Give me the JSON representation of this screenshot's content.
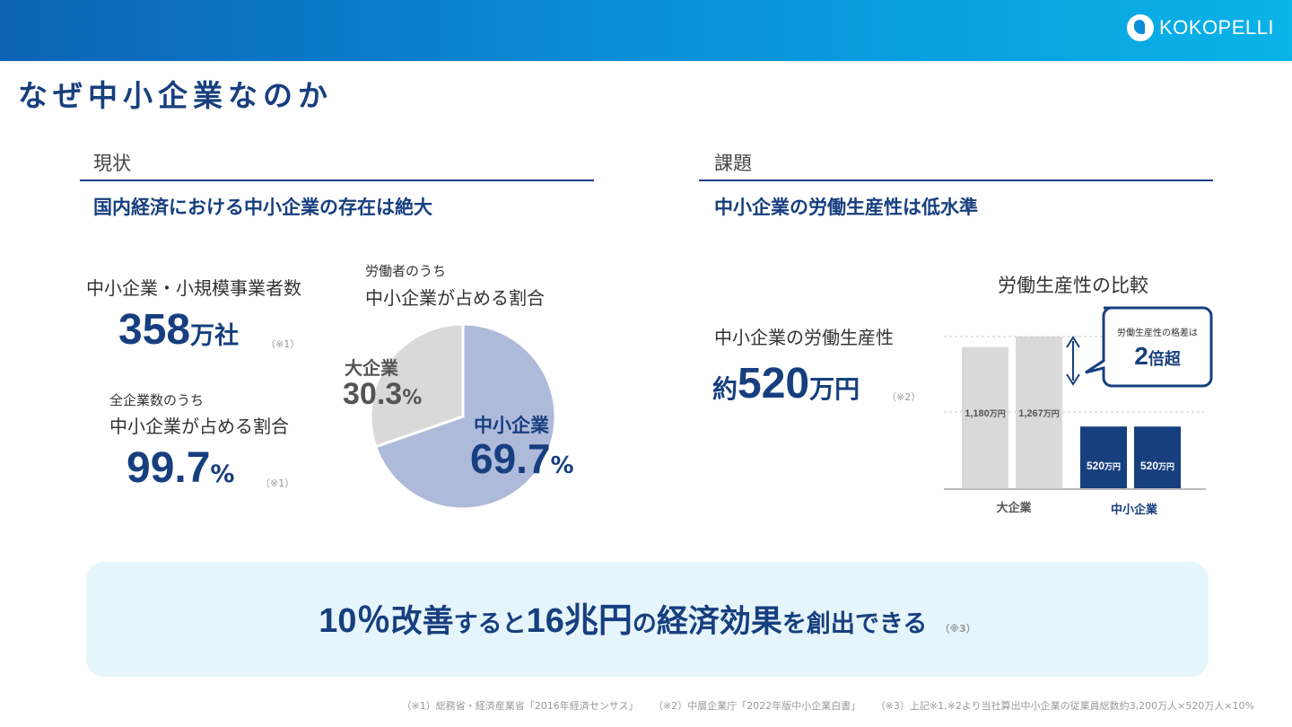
{
  "header": {
    "logo_text": "KOKOPELLI",
    "logo_icon": "kokopelli-logo-icon"
  },
  "page": {
    "title": "なぜ中小企業なのか"
  },
  "left": {
    "label": "現状",
    "heading": "国内経済における中小企業の存在は絶大",
    "count_label": "中小企業・小規模事業者数",
    "count_value": "358",
    "count_unit": "万社",
    "count_note": "（※1）",
    "ratio_small": "全企業数のうち",
    "ratio_label": "中小企業が占める割合",
    "ratio_value": "99.7",
    "ratio_unit": "%",
    "ratio_note": "（※1）"
  },
  "pie": {
    "caption_small": "労働者のうち",
    "caption": "中小企業が占める割合",
    "large_name": "大企業",
    "large_value": "30.3",
    "small_name": "中小企業",
    "small_value": "69.7",
    "unit": "%"
  },
  "right": {
    "label": "課題",
    "heading": "中小企業の労働生産性は低水準",
    "prod_label": "中小企業の労働生産性",
    "prod_prefix": "約",
    "prod_value": "520",
    "prod_unit": "万円",
    "prod_note": "（※2）",
    "chart_title": "労働生産性の比較",
    "callout_small": "労働生産性の格差は",
    "callout_num": "2",
    "callout_unit": "倍超"
  },
  "chart_data": {
    "type": "bar",
    "title": "労働生産性の比較",
    "categories": [
      "大企業",
      "中小企業"
    ],
    "bars": [
      {
        "group": "大企業",
        "value": 1180,
        "label_num": "1,180",
        "label_unit": "万円"
      },
      {
        "group": "大企業",
        "value": 1267,
        "label_num": "1,267",
        "label_unit": "万円"
      },
      {
        "group": "中小企業",
        "value": 520,
        "label_num": "520",
        "label_unit": "万円"
      },
      {
        "group": "中小企業",
        "value": 520,
        "label_num": "520",
        "label_unit": "万円"
      }
    ],
    "colors": {
      "large": "#d9d9d9",
      "small": "#173f7f"
    }
  },
  "pie_data": {
    "type": "pie",
    "slices": [
      {
        "name": "中小企業",
        "value": 69.7,
        "color": "#aebad9"
      },
      {
        "name": "大企業",
        "value": 30.3,
        "color": "#d9d9d9"
      }
    ]
  },
  "bottom": {
    "p1": "10％",
    "p2": "改善",
    "p3": "すると",
    "p4": "16兆円",
    "p5": "の",
    "p6": "経済効果",
    "p7": "を創出できる",
    "note": "（※3）"
  },
  "footnotes": [
    "（※1）総務省・経済産業省「2016年経済センサス」",
    "（※2）中層企業庁「2022年版中小企業白書」",
    "（※3）上記※1,※2より当社算出中小企業の従業員総数約3,200万人×520万人×10%"
  ]
}
